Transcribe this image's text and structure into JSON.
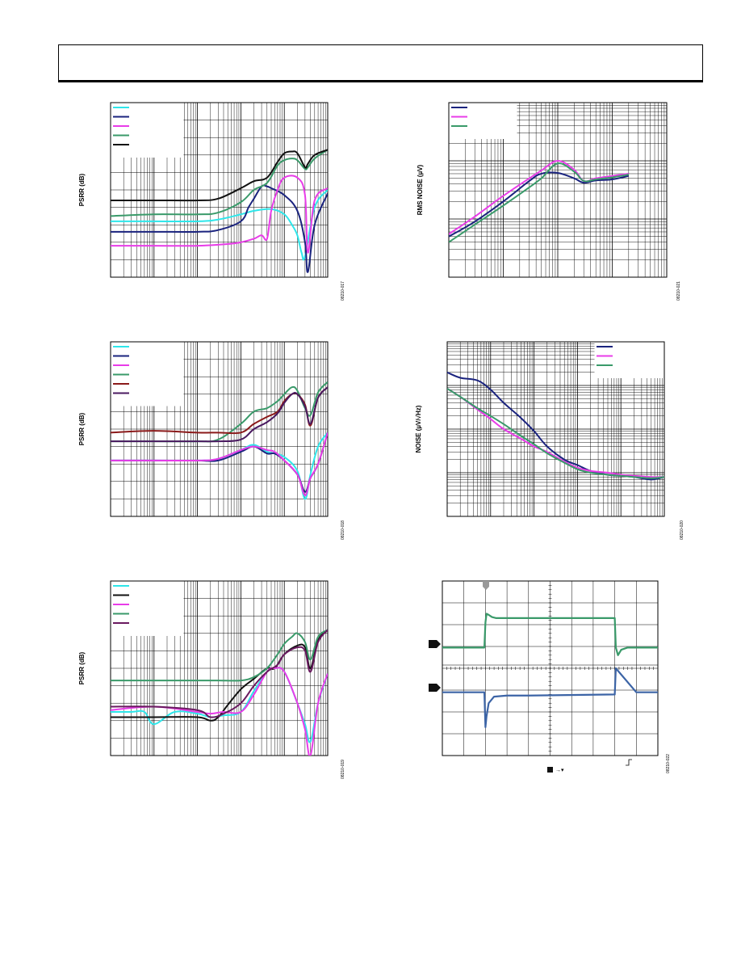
{
  "chart_data": [
    {
      "id": "psrr-1",
      "type": "line",
      "title": "",
      "xlabel": "",
      "ylabel": "PSRR (dB)",
      "x_scale": "log",
      "xlim": [
        10,
        1000000
      ],
      "ylim": [
        0,
        100
      ],
      "grid": true,
      "figure_id": "08210-017",
      "legend_placement": "top-left",
      "series": [
        {
          "name": "",
          "color": "#2ee6ea",
          "x": [
            10,
            100,
            1000,
            3000,
            10000,
            20000,
            50000,
            100000,
            150000,
            200000,
            250000,
            300000,
            500000,
            1000000
          ],
          "y": [
            32,
            32,
            32,
            33,
            36,
            38,
            39,
            36,
            30,
            24,
            14,
            12,
            40,
            50
          ]
        },
        {
          "name": "",
          "color": "#1a237e",
          "x": [
            10,
            100,
            1000,
            3000,
            10000,
            15000,
            20000,
            30000,
            40000,
            50000,
            100000,
            200000,
            300000,
            350000,
            500000,
            1000000
          ],
          "y": [
            26,
            26,
            26,
            27,
            32,
            40,
            45,
            52,
            52,
            51,
            47,
            38,
            20,
            3,
            30,
            48
          ]
        },
        {
          "name": "",
          "color": "#e83ce8",
          "x": [
            10,
            100,
            1000,
            5000,
            10000,
            20000,
            30000,
            40000,
            50000,
            70000,
            100000,
            200000,
            300000,
            350000,
            500000,
            1000000
          ],
          "y": [
            18,
            18,
            18,
            19,
            20,
            22,
            24,
            22,
            38,
            50,
            57,
            57,
            47,
            14,
            44,
            51
          ]
        },
        {
          "name": "",
          "color": "#3a9a6a",
          "x": [
            10,
            100,
            1000,
            3000,
            10000,
            20000,
            40000,
            70000,
            100000,
            150000,
            200000,
            300000,
            350000,
            500000,
            1000000
          ],
          "y": [
            35,
            36,
            36,
            37,
            43,
            50,
            54,
            64,
            67,
            68,
            67,
            62,
            63,
            68,
            73
          ]
        },
        {
          "name": "",
          "color": "#111111",
          "x": [
            10,
            100,
            1000,
            3000,
            10000,
            20000,
            40000,
            70000,
            100000,
            150000,
            200000,
            300000,
            350000,
            500000,
            1000000
          ],
          "y": [
            44,
            44,
            44,
            45,
            51,
            55,
            57,
            66,
            71,
            72,
            71,
            63,
            65,
            70,
            73
          ]
        }
      ]
    },
    {
      "id": "psrr-2",
      "type": "line",
      "title": "",
      "xlabel": "",
      "ylabel": "PSRR (dB)",
      "x_scale": "log",
      "xlim": [
        10,
        1000000
      ],
      "ylim": [
        0,
        100
      ],
      "grid": true,
      "figure_id": "08210-018",
      "legend_placement": "top-left",
      "series": [
        {
          "name": "",
          "color": "#2ee6ea",
          "x": [
            10,
            100,
            1000,
            3000,
            10000,
            20000,
            40000,
            60000,
            100000,
            200000,
            300000,
            400000,
            600000,
            1000000
          ],
          "y": [
            32,
            32,
            32,
            33,
            38,
            41,
            37,
            36,
            34,
            26,
            10,
            24,
            40,
            48
          ]
        },
        {
          "name": "",
          "color": "#1a237e",
          "x": [
            10,
            100,
            1000,
            3000,
            10000,
            20000,
            40000,
            60000,
            100000,
            200000,
            300000,
            400000,
            600000,
            1000000
          ],
          "y": [
            32,
            32,
            32,
            32,
            37,
            40,
            36,
            36,
            32,
            24,
            14,
            22,
            30,
            48
          ]
        },
        {
          "name": "",
          "color": "#e83ce8",
          "x": [
            10,
            100,
            1000,
            3000,
            10000,
            20000,
            40000,
            60000,
            100000,
            200000,
            300000,
            400000,
            600000,
            1000000
          ],
          "y": [
            32,
            32,
            32,
            33,
            38,
            40,
            38,
            37,
            32,
            24,
            12,
            22,
            30,
            48
          ]
        },
        {
          "name": "",
          "color": "#3a9a6a",
          "x": [
            10,
            100,
            1000,
            3000,
            10000,
            20000,
            40000,
            70000,
            100000,
            150000,
            200000,
            300000,
            400000,
            600000,
            1000000
          ],
          "y": [
            43,
            43,
            43,
            44,
            53,
            60,
            62,
            66,
            70,
            74,
            72,
            62,
            58,
            71,
            77
          ]
        },
        {
          "name": "",
          "color": "#8b1a1a",
          "x": [
            10,
            100,
            1000,
            3000,
            10000,
            20000,
            40000,
            70000,
            100000,
            150000,
            200000,
            300000,
            400000,
            600000,
            1000000
          ],
          "y": [
            48,
            49,
            48,
            48,
            48,
            53,
            57,
            60,
            66,
            70,
            70,
            64,
            52,
            68,
            74
          ]
        },
        {
          "name": "",
          "color": "#4a1a60",
          "x": [
            10,
            100,
            1000,
            3000,
            10000,
            20000,
            40000,
            70000,
            100000,
            150000,
            200000,
            300000,
            400000,
            600000,
            1000000
          ],
          "y": [
            43,
            43,
            43,
            43,
            44,
            50,
            54,
            59,
            65,
            70,
            70,
            63,
            53,
            68,
            74
          ]
        }
      ]
    },
    {
      "id": "psrr-3",
      "type": "line",
      "title": "",
      "xlabel": "",
      "ylabel": "PSRR (dB)",
      "x_scale": "log",
      "xlim": [
        10,
        1000000
      ],
      "ylim": [
        0,
        100
      ],
      "grid": true,
      "figure_id": "08210-019",
      "legend_placement": "top-left",
      "series": [
        {
          "name": "",
          "color": "#2ee6ea",
          "x": [
            10,
            30,
            60,
            100,
            300,
            1000,
            2000,
            4000,
            10000,
            20000,
            40000,
            60000,
            100000,
            200000,
            300000,
            400000,
            600000,
            1000000
          ],
          "y": [
            25,
            25,
            25,
            18,
            25,
            24,
            22,
            23,
            25,
            37,
            48,
            50,
            48,
            30,
            18,
            8,
            30,
            47
          ]
        },
        {
          "name": "",
          "color": "#111111",
          "x": [
            10,
            100,
            1000,
            2000,
            3000,
            5000,
            10000,
            20000,
            40000,
            60000,
            100000,
            200000,
            300000,
            400000,
            600000,
            1000000
          ],
          "y": [
            22,
            22,
            22,
            20,
            22,
            29,
            38,
            44,
            50,
            50,
            58,
            63,
            62,
            50,
            66,
            72
          ]
        },
        {
          "name": "",
          "color": "#e83ce8",
          "x": [
            10,
            100,
            1000,
            2000,
            4000,
            10000,
            20000,
            40000,
            60000,
            100000,
            200000,
            300000,
            400000,
            600000,
            1000000
          ],
          "y": [
            26,
            28,
            25,
            24,
            25,
            25,
            35,
            48,
            50,
            48,
            30,
            15,
            0,
            30,
            47
          ]
        },
        {
          "name": "",
          "color": "#3a9a6a",
          "x": [
            10,
            100,
            1000,
            3000,
            10000,
            20000,
            40000,
            70000,
            100000,
            150000,
            200000,
            300000,
            400000,
            600000,
            1000000
          ],
          "y": [
            43,
            43,
            43,
            43,
            43,
            45,
            50,
            58,
            64,
            68,
            70,
            65,
            55,
            68,
            72
          ]
        },
        {
          "name": "",
          "color": "#6a1a60",
          "x": [
            10,
            100,
            1000,
            2000,
            4000,
            10000,
            20000,
            40000,
            70000,
            100000,
            200000,
            300000,
            400000,
            600000,
            1000000
          ],
          "y": [
            28,
            28,
            26,
            22,
            24,
            30,
            40,
            48,
            52,
            58,
            62,
            60,
            48,
            65,
            72
          ]
        }
      ]
    },
    {
      "id": "rms-noise",
      "type": "line",
      "title": "",
      "xlabel": "",
      "ylabel": "RMS NOISE (µV)",
      "x_scale": "log",
      "xlim": [
        0.001,
        10
      ],
      "y_scale": "log",
      "ylim": [
        1,
        1000
      ],
      "grid": true,
      "figure_id": "08210-021",
      "legend_placement": "top-left",
      "series": [
        {
          "name": "",
          "color": "#1a237e",
          "x": [
            0.001,
            0.003,
            0.01,
            0.03,
            0.05,
            0.1,
            0.2,
            0.3,
            0.5,
            1,
            2
          ],
          "y": [
            5.0,
            9.0,
            20,
            45,
            60,
            62,
            50,
            42,
            46,
            48,
            55
          ]
        },
        {
          "name": "",
          "color": "#e83ce8",
          "x": [
            0.001,
            0.003,
            0.01,
            0.03,
            0.05,
            0.1,
            0.2,
            0.3,
            0.5,
            1,
            2
          ],
          "y": [
            5.5,
            11,
            25,
            50,
            68,
            100,
            70,
            45,
            50,
            55,
            60
          ]
        },
        {
          "name": "",
          "color": "#3a9a6a",
          "x": [
            0.001,
            0.003,
            0.01,
            0.03,
            0.05,
            0.1,
            0.2,
            0.3,
            0.5,
            1,
            2
          ],
          "y": [
            4.0,
            8.0,
            17,
            35,
            50,
            90,
            65,
            45,
            48,
            52,
            58
          ]
        }
      ]
    },
    {
      "id": "noise-density",
      "type": "line",
      "title": "",
      "xlabel": "",
      "ylabel": "NOISE (µV/√Hz)",
      "x_scale": "log",
      "xlim": [
        10,
        1000000
      ],
      "y_scale": "log",
      "ylim": [
        0.001,
        10
      ],
      "grid": true,
      "figure_id": "08210-020",
      "legend_placement": "top-right",
      "series": [
        {
          "name": "",
          "color": "#1a237e",
          "x": [
            10,
            20,
            50,
            100,
            200,
            500,
            1000,
            2000,
            5000,
            10000,
            20000,
            50000,
            100000,
            200000,
            500000,
            1000000
          ],
          "y": [
            2.0,
            1.5,
            1.3,
            0.8,
            0.4,
            0.18,
            0.09,
            0.04,
            0.02,
            0.015,
            0.011,
            0.009,
            0.0085,
            0.008,
            0.007,
            0.008
          ]
        },
        {
          "name": "",
          "color": "#e83ce8",
          "x": [
            10,
            20,
            50,
            100,
            200,
            500,
            1000,
            2000,
            5000,
            10000,
            20000,
            50000,
            100000,
            200000,
            500000,
            1000000
          ],
          "y": [
            0.85,
            0.55,
            0.28,
            0.17,
            0.1,
            0.06,
            0.04,
            0.03,
            0.018,
            0.013,
            0.011,
            0.01,
            0.009,
            0.0085,
            0.008,
            0.008
          ]
        },
        {
          "name": "",
          "color": "#3a9a6a",
          "x": [
            10,
            20,
            50,
            100,
            200,
            500,
            1000,
            2000,
            5000,
            10000,
            20000,
            50000,
            100000,
            200000,
            500000,
            1000000
          ],
          "y": [
            0.85,
            0.55,
            0.3,
            0.2,
            0.13,
            0.07,
            0.045,
            0.028,
            0.017,
            0.012,
            0.01,
            0.009,
            0.0085,
            0.008,
            0.0075,
            0.008
          ]
        }
      ]
    },
    {
      "id": "transient",
      "type": "line",
      "title": "",
      "xlabel": "",
      "ylabel": "",
      "x_scale": "linear",
      "xlim": [
        0,
        10
      ],
      "ylim": [
        0,
        8
      ],
      "grid": true,
      "figure_id": "08210-022",
      "series": [
        {
          "name": "",
          "color": "#3a9a6a",
          "x": [
            0,
            1.95,
            2.0,
            2.05,
            2.15,
            2.3,
            2.5,
            8.0,
            8.05,
            8.15,
            8.3,
            8.6,
            10
          ],
          "y": [
            4.95,
            4.95,
            6.1,
            6.5,
            6.45,
            6.35,
            6.3,
            6.3,
            4.95,
            4.6,
            4.85,
            4.95,
            4.95
          ]
        },
        {
          "name": "",
          "color": "#3c64a6",
          "x": [
            0,
            1.95,
            2.0,
            2.05,
            2.15,
            2.4,
            3.0,
            4.0,
            8.0,
            8.05,
            9.0,
            10
          ],
          "y": [
            2.9,
            2.9,
            1.3,
            1.8,
            2.4,
            2.7,
            2.75,
            2.75,
            2.8,
            4.0,
            2.9,
            2.9
          ]
        }
      ],
      "markers": {
        "trigger_marker_fill": "#999999",
        "channel_marker_fill": "#111111"
      }
    }
  ]
}
